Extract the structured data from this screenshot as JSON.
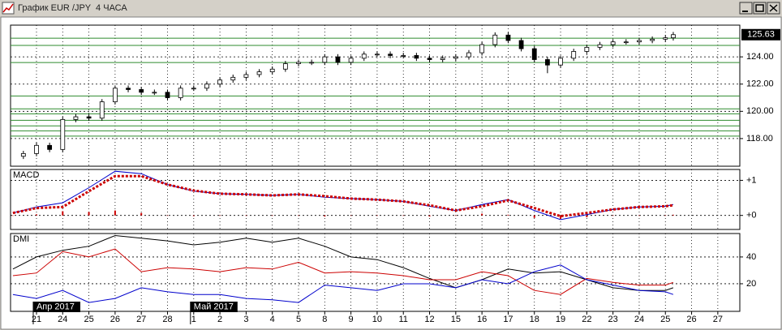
{
  "window_title": "График EUR /JPY  4 ЧАСА",
  "x_axis": {
    "xlim": [
      -0.99,
      26.84
    ],
    "xticks": [
      {
        "value": 0,
        "label": "21"
      },
      {
        "value": 1,
        "label": "24"
      },
      {
        "value": 2,
        "label": "25"
      },
      {
        "value": 3,
        "label": "26"
      },
      {
        "value": 4,
        "label": "27"
      },
      {
        "value": 5,
        "label": "28"
      },
      {
        "value": 6,
        "label": "1"
      },
      {
        "value": 7,
        "label": "2"
      },
      {
        "value": 8,
        "label": "3"
      },
      {
        "value": 9,
        "label": "4"
      },
      {
        "value": 10,
        "label": "5"
      },
      {
        "value": 11,
        "label": "8"
      },
      {
        "value": 12,
        "label": "9"
      },
      {
        "value": 13,
        "label": "10"
      },
      {
        "value": 14,
        "label": "11"
      },
      {
        "value": 15,
        "label": "12"
      },
      {
        "value": 16,
        "label": "15"
      },
      {
        "value": 17,
        "label": "16"
      },
      {
        "value": 18,
        "label": "17"
      },
      {
        "value": 19,
        "label": "18"
      },
      {
        "value": 20,
        "label": "19"
      },
      {
        "value": 21,
        "label": "22"
      },
      {
        "value": 22,
        "label": "23"
      },
      {
        "value": 23,
        "label": "24"
      },
      {
        "value": 24,
        "label": "25"
      },
      {
        "value": 25,
        "label": "26"
      },
      {
        "value": 26,
        "label": "27"
      }
    ],
    "periods": [
      {
        "value": 0,
        "label": "Апр 2017"
      },
      {
        "value": 6,
        "label": "Май 2017"
      }
    ]
  },
  "chart_data": [
    {
      "type": "candlestick",
      "x": [
        -0.5,
        0,
        0.5,
        1,
        1.5,
        2,
        2.5,
        3,
        3.5,
        4,
        4.5,
        5,
        5.5,
        6,
        6.5,
        7,
        7.5,
        8,
        8.5,
        9,
        9.5,
        10,
        10.5,
        11,
        11.5,
        12,
        12.5,
        13,
        13.5,
        14,
        14.5,
        15,
        15.5,
        16,
        16.5,
        17,
        17.5,
        18,
        18.5,
        19,
        19.5,
        20,
        20.5,
        21,
        21.5,
        22,
        22.5,
        23,
        23.5,
        24,
        24.3
      ],
      "open": [
        116.7,
        116.9,
        117.5,
        117.2,
        119.4,
        119.6,
        119.5,
        120.7,
        121.7,
        121.6,
        121.4,
        121.4,
        121.0,
        121.7,
        121.7,
        122.0,
        122.3,
        122.5,
        122.7,
        122.9,
        123.1,
        123.5,
        123.6,
        123.6,
        124.0,
        123.6,
        123.9,
        124.2,
        124.2,
        124.1,
        124.1,
        123.9,
        123.8,
        123.9,
        124.0,
        124.3,
        124.9,
        125.6,
        125.2,
        124.6,
        123.8,
        123.4,
        123.9,
        124.4,
        124.7,
        124.9,
        125.1,
        125.1,
        125.2,
        125.3,
        125.4
      ],
      "high": [
        117.1,
        117.7,
        117.7,
        119.6,
        119.8,
        119.8,
        120.9,
        121.9,
        121.9,
        121.8,
        121.6,
        121.6,
        121.9,
        121.9,
        122.2,
        122.5,
        122.7,
        122.9,
        123.1,
        123.3,
        123.7,
        123.8,
        123.8,
        124.2,
        124.2,
        124.1,
        124.4,
        124.4,
        124.4,
        124.3,
        124.3,
        124.1,
        124.1,
        124.2,
        124.5,
        125.1,
        125.8,
        125.8,
        125.4,
        124.8,
        124.0,
        124.1,
        124.6,
        124.9,
        125.1,
        125.3,
        125.3,
        125.4,
        125.5,
        125.6,
        125.83
      ],
      "low": [
        116.5,
        116.7,
        117.0,
        117.0,
        119.2,
        119.3,
        119.3,
        120.5,
        121.4,
        121.2,
        121.2,
        120.8,
        120.8,
        121.5,
        121.5,
        121.8,
        122.1,
        122.3,
        122.5,
        122.7,
        122.9,
        123.3,
        123.4,
        123.4,
        123.4,
        123.4,
        123.7,
        124.0,
        123.9,
        123.9,
        123.7,
        123.6,
        123.6,
        123.7,
        123.8,
        124.1,
        124.7,
        125.0,
        124.4,
        123.6,
        122.8,
        123.2,
        123.7,
        124.2,
        124.5,
        124.7,
        124.9,
        124.9,
        125.0,
        125.1,
        125.2
      ],
      "close": [
        116.9,
        117.5,
        117.2,
        119.4,
        119.6,
        119.5,
        120.7,
        121.7,
        121.6,
        121.4,
        121.4,
        121.0,
        121.7,
        121.7,
        122.0,
        122.3,
        122.5,
        122.7,
        122.9,
        123.1,
        123.5,
        123.6,
        123.6,
        124.0,
        123.6,
        123.9,
        124.2,
        124.2,
        124.1,
        124.1,
        123.9,
        123.8,
        123.9,
        124.0,
        124.3,
        124.9,
        125.6,
        125.2,
        124.6,
        123.8,
        123.4,
        123.9,
        124.4,
        124.7,
        124.9,
        125.1,
        125.1,
        125.2,
        125.3,
        125.4,
        125.63
      ],
      "up_color": "#ffffff",
      "down_color": "#000000",
      "levels": [
        125.37,
        124.84,
        123.58,
        121.13,
        120.18,
        119.82,
        119.34,
        118.93,
        118.57,
        118.18
      ],
      "levels_color": "#2e8b2e",
      "ylim": [
        115.97,
        126.33
      ],
      "yticks": [
        {
          "value": 118,
          "label": "118.00"
        },
        {
          "value": 120,
          "label": "120.00"
        },
        {
          "value": 122,
          "label": "122.00"
        },
        {
          "value": 124,
          "label": "124.00"
        }
      ],
      "grid": true
    },
    {
      "type": "line",
      "title": "MACD",
      "x": [
        -0.9,
        0,
        1,
        2,
        3,
        4,
        5,
        6,
        7,
        8,
        9,
        10,
        11,
        12,
        13,
        14,
        15,
        16,
        17,
        18,
        19,
        20,
        21,
        22,
        23,
        24,
        24.3
      ],
      "series": [
        {
          "kind": "bars",
          "color": "#cc0000",
          "values": [
            0,
            0.03,
            0.12,
            0.1,
            0.14,
            0.07,
            0,
            -0.02,
            0,
            0,
            0,
            0,
            -0.03,
            0,
            0,
            0,
            -0.03,
            0,
            0.05,
            0.02,
            -0.07,
            -0.1,
            -0.05,
            0,
            0,
            0,
            0.02
          ]
        },
        {
          "kind": "line",
          "color": "#0000cc",
          "values": [
            0.07,
            0.24,
            0.36,
            0.79,
            1.26,
            1.19,
            0.88,
            0.69,
            0.62,
            0.6,
            0.57,
            0.6,
            0.52,
            0.48,
            0.45,
            0.4,
            0.26,
            0.14,
            0.31,
            0.45,
            0.14,
            -0.12,
            0.02,
            0.17,
            0.24,
            0.26,
            0.31
          ]
        },
        {
          "kind": "dots",
          "color": "#cc0000",
          "values": [
            0.07,
            0.21,
            0.24,
            0.69,
            1.12,
            1.12,
            0.88,
            0.71,
            0.62,
            0.6,
            0.57,
            0.6,
            0.55,
            0.48,
            0.45,
            0.4,
            0.29,
            0.14,
            0.26,
            0.43,
            0.21,
            -0.02,
            0.07,
            0.17,
            0.24,
            0.26,
            0.29
          ]
        }
      ],
      "ylim": [
        -0.4,
        1.31
      ],
      "yticks": [
        {
          "value": 1,
          "label": "+1"
        },
        {
          "value": 0,
          "label": "+0"
        }
      ],
      "grid": true
    },
    {
      "type": "line",
      "title": "DMI",
      "x": [
        -0.9,
        0,
        1,
        2,
        3,
        4,
        5,
        6,
        7,
        8,
        9,
        10,
        11,
        12,
        13,
        14,
        15,
        16,
        17,
        18,
        19,
        20,
        21,
        22,
        23,
        24,
        24.3
      ],
      "series": [
        {
          "kind": "line",
          "color": "#000000",
          "values": [
            31,
            40,
            45,
            48,
            56,
            54,
            52,
            49,
            51,
            54,
            51,
            54,
            48,
            40,
            38,
            32,
            24,
            17,
            23,
            31,
            28,
            29,
            23,
            17,
            15,
            15,
            17
          ]
        },
        {
          "kind": "line",
          "color": "#cc0000",
          "values": [
            26,
            28,
            44,
            40,
            46,
            29,
            32,
            31,
            29,
            32,
            31,
            36,
            28,
            29,
            28,
            26,
            23,
            23,
            29,
            26,
            15,
            12,
            24,
            21,
            19,
            19,
            21
          ]
        },
        {
          "kind": "line",
          "color": "#0000cc",
          "values": [
            12,
            9,
            15,
            6,
            9,
            17,
            14,
            12,
            12,
            9,
            8,
            6,
            19,
            17,
            15,
            20,
            20,
            17,
            23,
            20,
            29,
            34,
            23,
            19,
            15,
            14,
            12
          ]
        }
      ],
      "ylim": [
        -0.6,
        57.5
      ],
      "yticks": [
        40,
        20
      ],
      "grid": true
    }
  ]
}
